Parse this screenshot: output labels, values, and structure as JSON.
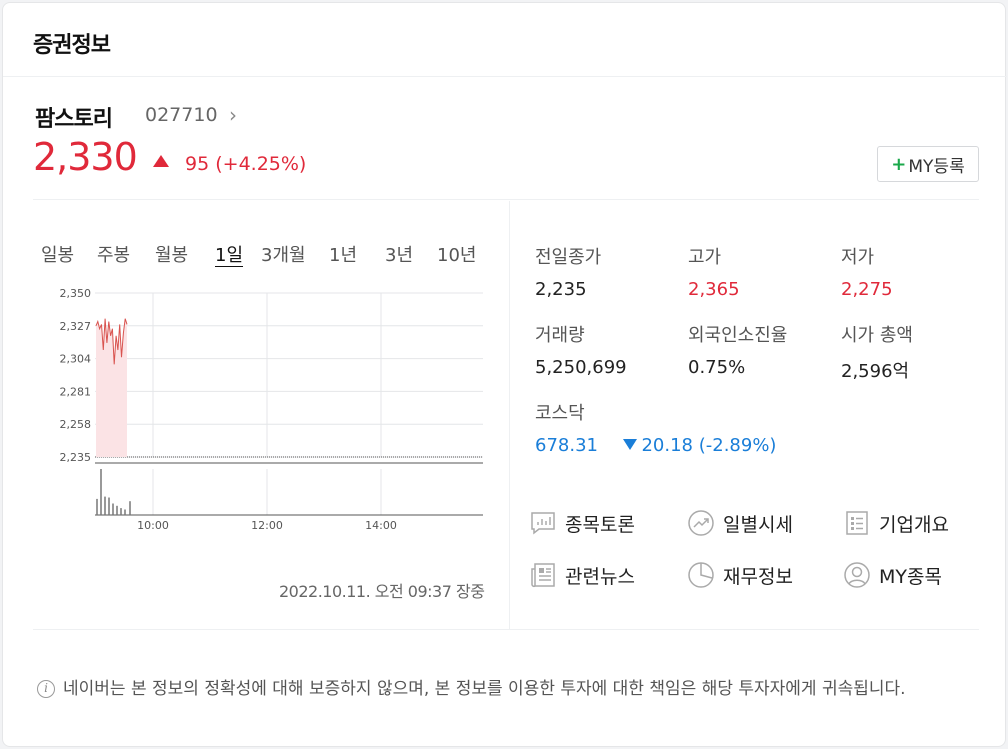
{
  "header": {
    "title": "증권정보"
  },
  "stock": {
    "name": "팜스토리",
    "code": "027710",
    "price": "2,330",
    "change_amount": "95",
    "change_rate": "(+4.25%)",
    "my_button_label": "MY등록"
  },
  "period_tabs": [
    "일봉",
    "주봉",
    "월봉",
    "1일",
    "3개월",
    "1년",
    "3년",
    "10년"
  ],
  "active_period": "1일",
  "chart_data": {
    "type": "line",
    "y_tick_labels": [
      "2,350",
      "2,327",
      "2,304",
      "2,281",
      "2,258",
      "2,235"
    ],
    "x_tick_labels": [
      "10:00",
      "12:00",
      "14:00"
    ],
    "ylim": [
      2235,
      2350
    ],
    "reference_line": 2235,
    "series": [
      {
        "values": [
          2327,
          2330,
          2325,
          2328,
          2310,
          2332,
          2315,
          2330,
          2320,
          2325,
          2300,
          2320,
          2310,
          2328,
          2305,
          2322,
          2332,
          2328
        ]
      }
    ],
    "volume": [
      0.35,
      1.0,
      0.4,
      0.38,
      0.25,
      0.2,
      0.15,
      0.12,
      0.3
    ]
  },
  "timestamp": "2022.10.11. 오전 09:37 장중",
  "stats": {
    "prev_close": {
      "label": "전일종가",
      "value": "2,235"
    },
    "high": {
      "label": "고가",
      "value": "2,365"
    },
    "low": {
      "label": "저가",
      "value": "2,275"
    },
    "volume": {
      "label": "거래량",
      "value": "5,250,699"
    },
    "foreign_ratio": {
      "label": "외국인소진율",
      "value": "0.75%"
    },
    "market_cap": {
      "label": "시가 총액",
      "value": "2,596억"
    }
  },
  "index": {
    "label": "코스닥",
    "value": "678.31",
    "change": "20.18",
    "change_rate": "(-2.89%)"
  },
  "links": [
    {
      "label": "종목토론",
      "icon": "chat-chart-icon"
    },
    {
      "label": "일별시세",
      "icon": "trend-circle-icon"
    },
    {
      "label": "기업개요",
      "icon": "list-doc-icon"
    },
    {
      "label": "관련뉴스",
      "icon": "news-icon"
    },
    {
      "label": "재무정보",
      "icon": "pie-chart-icon"
    },
    {
      "label": "MY종목",
      "icon": "user-circle-icon"
    }
  ],
  "notice": "네이버는 본 정보의 정확성에 대해 보증하지 않으며, 본 정보를 이용한 투자에 대한 책임은 해당 투자자에게 귀속됩니다.",
  "colors": {
    "up": "#e0293a",
    "down": "#1a7ed8",
    "plus": "#1ba84b"
  }
}
